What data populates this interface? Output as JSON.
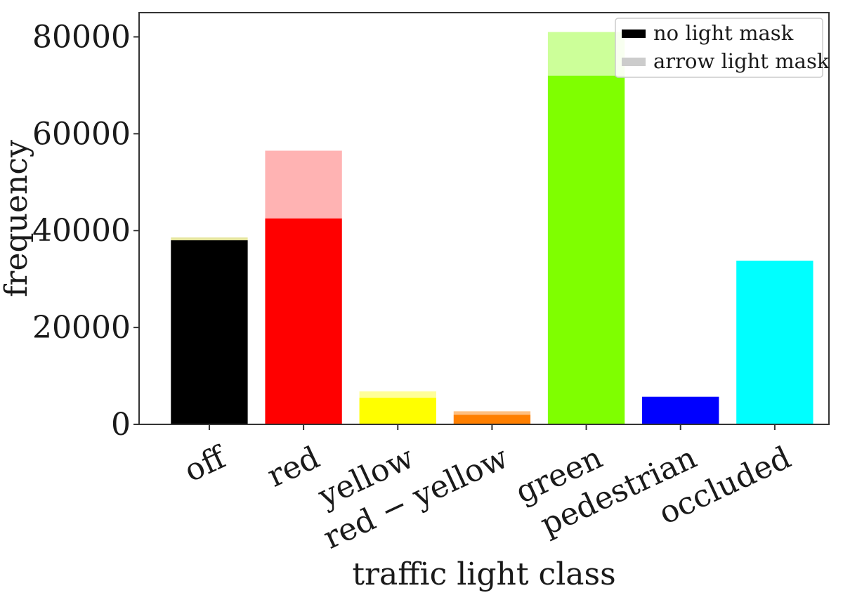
{
  "chart_data": {
    "type": "bar",
    "stacked": true,
    "xlabel": "traffic light class",
    "ylabel": "frequency",
    "ylim": [
      0,
      85000
    ],
    "yticks": [
      0,
      20000,
      40000,
      60000,
      80000
    ],
    "ytick_labels": [
      "0",
      "20000",
      "40000",
      "60000",
      "80000"
    ],
    "grid": false,
    "legend_position": "top-right",
    "categories": [
      "off",
      "red",
      "yellow",
      "red − yellow",
      "green",
      "pedestrian",
      "occluded"
    ],
    "bar_colors": [
      "#000000",
      "#ff0000",
      "#ffff00",
      "#ff7f00",
      "#7fff00",
      "#0000ff",
      "#00ffff"
    ],
    "arrow_colors": [
      "#e6e6a0",
      "#ffb3b3",
      "#ffff99",
      "#ffbf80",
      "#ccff99",
      "#9999ff",
      "#99ffff"
    ],
    "series": [
      {
        "name": "no light mask",
        "values": [
          38000,
          42500,
          5500,
          2000,
          72000,
          5700,
          33800
        ]
      },
      {
        "name": "arrow light mask",
        "values": [
          600,
          14000,
          1300,
          700,
          9000,
          0,
          0
        ]
      }
    ],
    "legend_colors": [
      "#000000",
      "#cccccc"
    ]
  }
}
